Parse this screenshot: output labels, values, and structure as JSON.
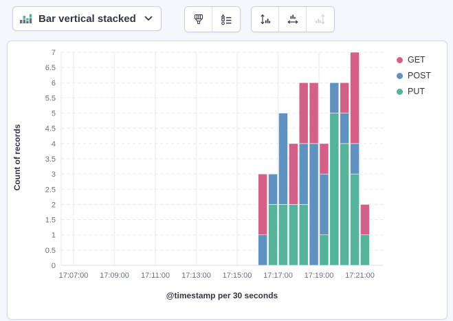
{
  "page": {
    "background": "#f6f7fc"
  },
  "toolbar": {
    "chart_type_button": {
      "label": "Bar vertical stacked",
      "icon": "stacked-bar-chart-icon"
    },
    "style_group_icons": [
      "brush-icon",
      "visual-options-icon"
    ],
    "fit_group_icons": [
      "fit-vertical-axis-icon",
      "fit-horizontal-axis-icon",
      "fit-vertical-alt-icon"
    ],
    "fit_group_disabled": [
      false,
      false,
      true
    ]
  },
  "chart_data": {
    "type": "bar",
    "stacked": true,
    "xlabel": "@timestamp per 30 seconds",
    "ylabel": "Count of records",
    "ylim": [
      0,
      7
    ],
    "ytick_step": 0.5,
    "xticks": [
      "17:07:00",
      "17:09:00",
      "17:11:00",
      "17:13:00",
      "17:15:00",
      "17:17:00",
      "17:19:00",
      "17:21:00"
    ],
    "bucket_seconds": 30,
    "x": [
      "17:16:00",
      "17:16:30",
      "17:17:00",
      "17:17:30",
      "17:18:00",
      "17:18:30",
      "17:19:00",
      "17:19:30",
      "17:20:00",
      "17:20:30",
      "17:21:00"
    ],
    "stack_order_bottom_to_top": [
      "PUT",
      "POST",
      "GET"
    ],
    "series": [
      {
        "name": "GET",
        "color": "#D36086",
        "values": [
          2,
          0,
          0,
          2,
          2,
          2,
          1,
          0,
          1,
          3,
          1
        ]
      },
      {
        "name": "POST",
        "color": "#6092C0",
        "values": [
          1,
          1,
          3,
          0,
          2,
          4,
          2,
          1,
          1,
          1,
          0
        ]
      },
      {
        "name": "PUT",
        "color": "#54B399",
        "values": [
          0,
          2,
          2,
          2,
          2,
          0,
          1,
          5,
          4,
          3,
          1
        ]
      }
    ],
    "legend": {
      "position": "right",
      "items": [
        "GET",
        "POST",
        "PUT"
      ]
    },
    "grid": {
      "horizontal": "dashed",
      "vertical": "solid"
    }
  },
  "colors": {
    "get": "#D36086",
    "post": "#6092C0",
    "put": "#54B399",
    "icon": "#343741",
    "icon_disabled": "#ccd2dd",
    "tick_text": "#69707D",
    "grid_dashed": "#e4e7ed",
    "grid_vertical": "#eef0f4",
    "baseline": "#dfe3ea",
    "panel_border": "#d3dae6"
  }
}
